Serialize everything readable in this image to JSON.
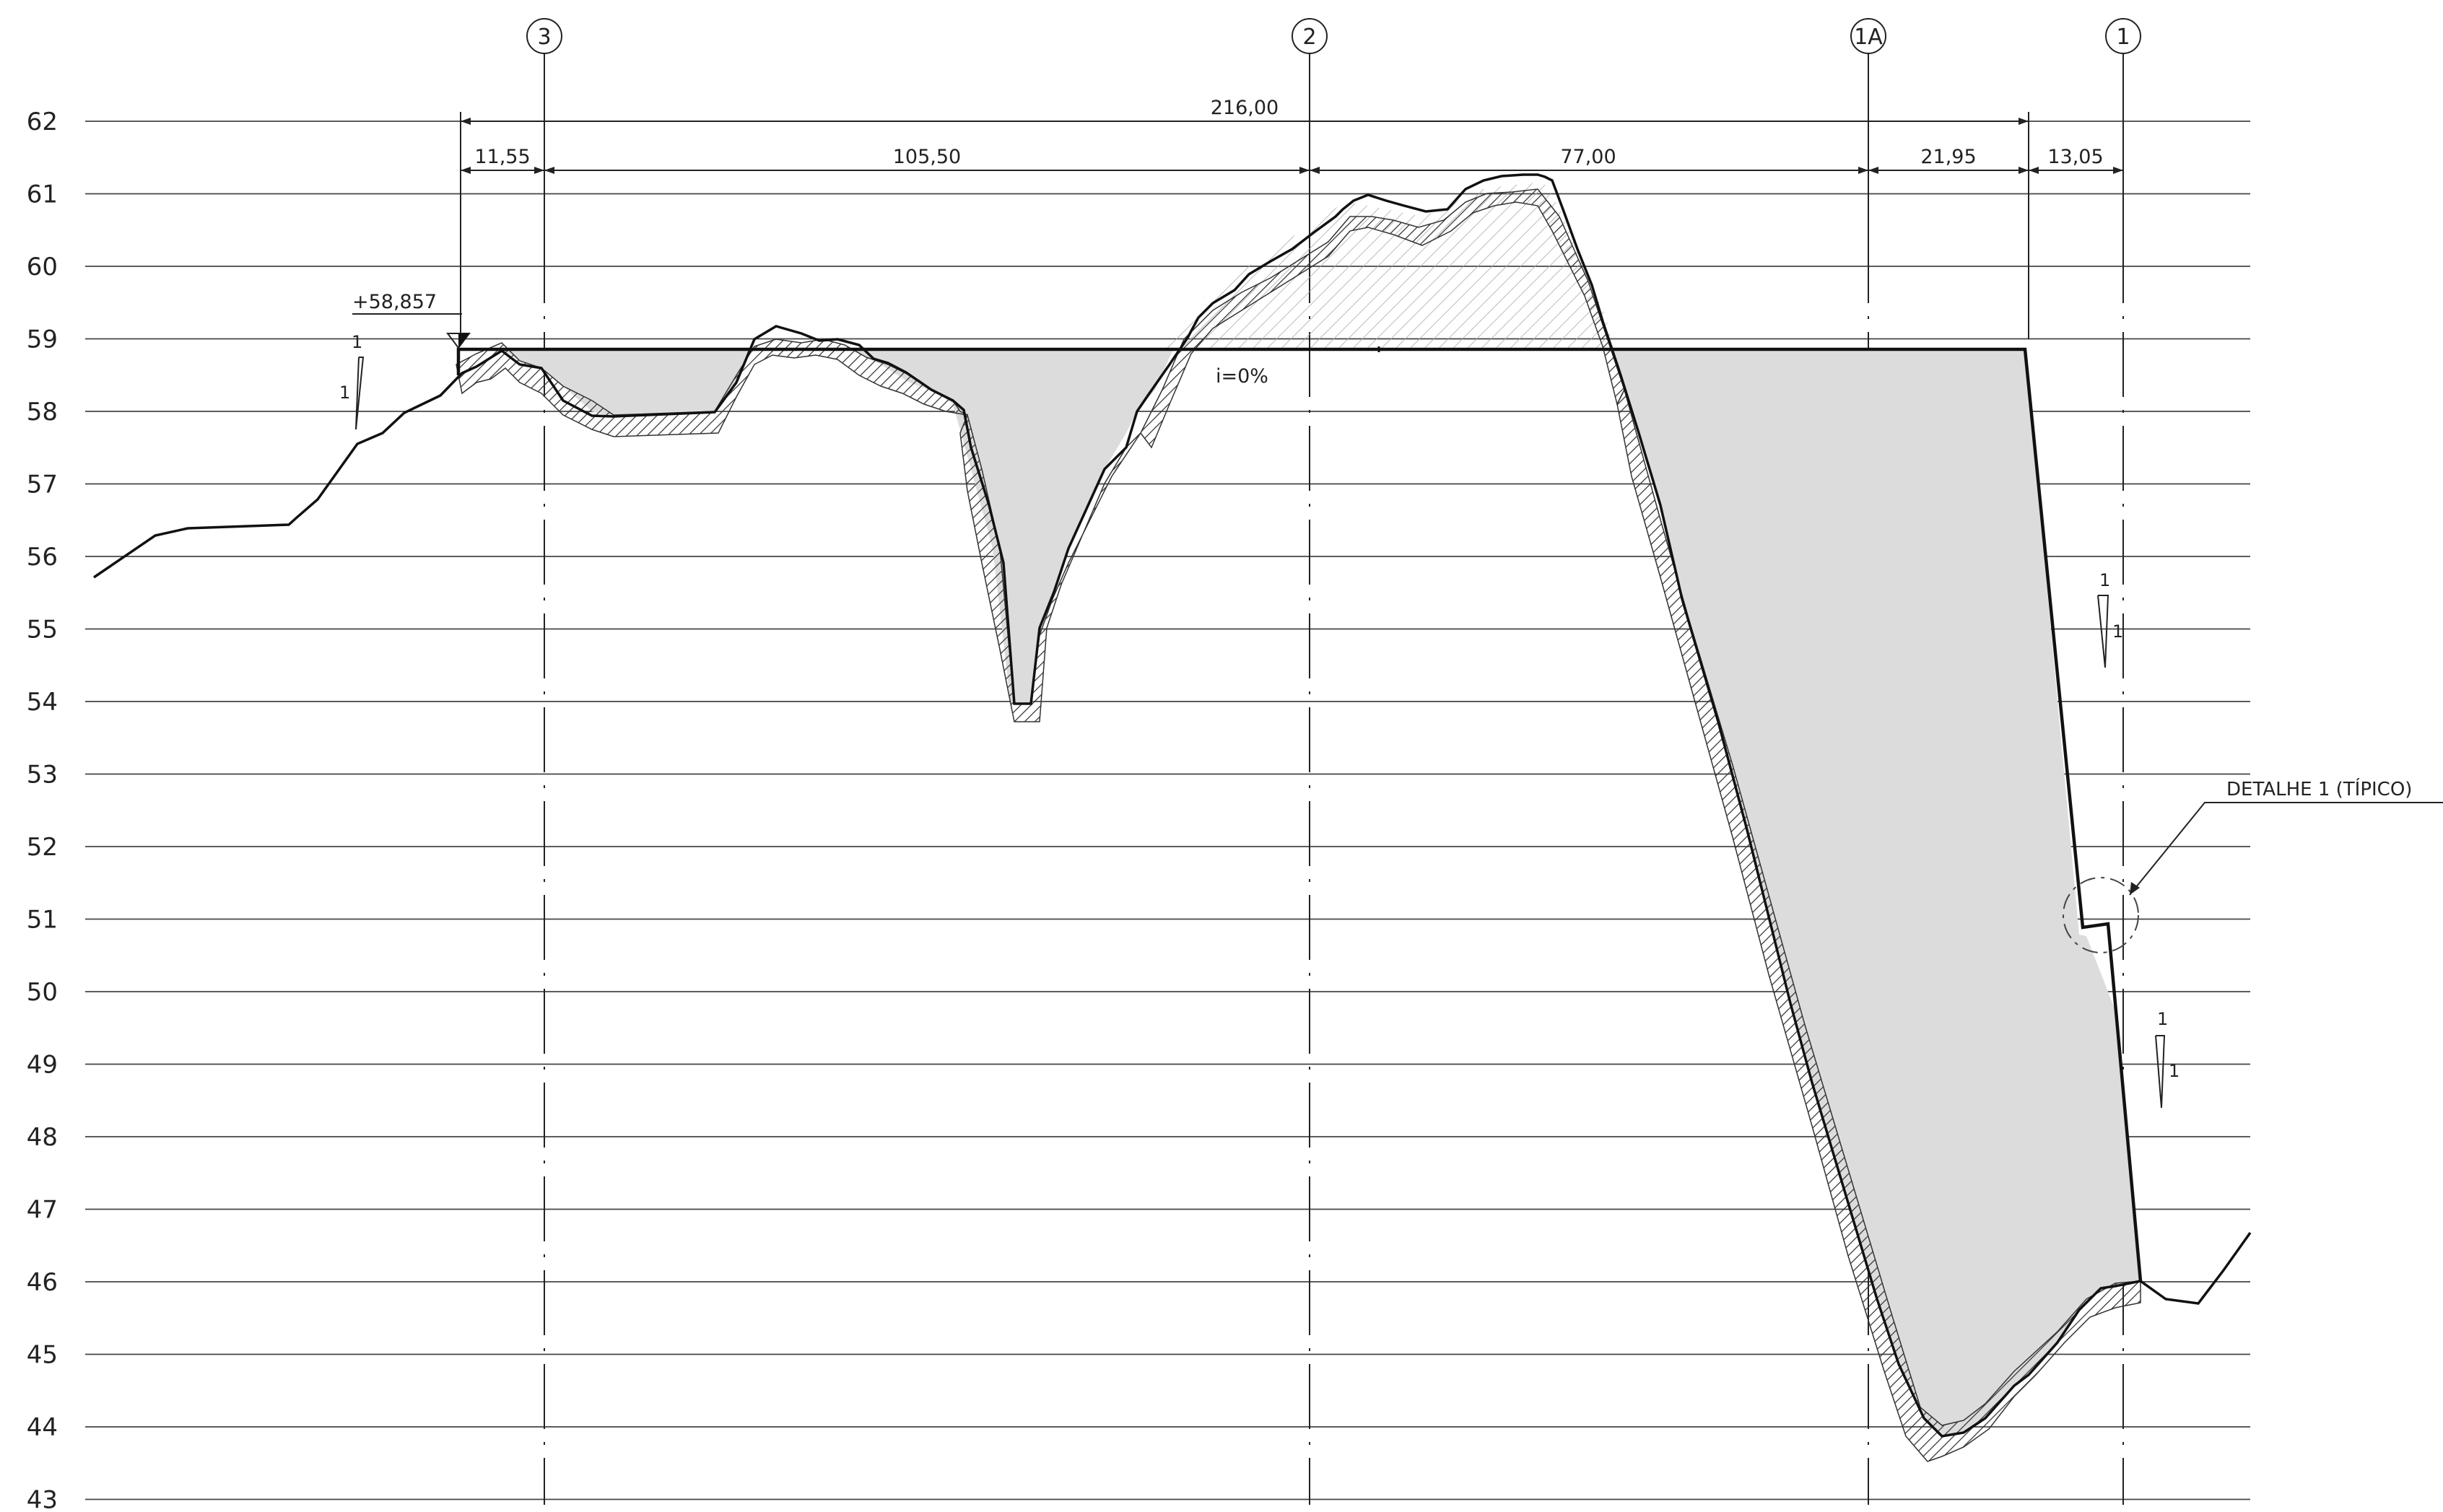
{
  "elevations": [
    "62",
    "61",
    "60",
    "59",
    "58",
    "57",
    "56",
    "55",
    "54",
    "53",
    "52",
    "51",
    "50",
    "49",
    "48",
    "47",
    "46",
    "45",
    "44",
    "43"
  ],
  "axes": [
    {
      "id": "axis-3",
      "label": "3"
    },
    {
      "id": "axis-2",
      "label": "2"
    },
    {
      "id": "axis-1a",
      "label": "1A"
    },
    {
      "id": "axis-1",
      "label": "1"
    }
  ],
  "dimensions": {
    "total": "216,00",
    "segments": [
      "11,55",
      "105,50",
      "77,00",
      "21,95",
      "13,05"
    ]
  },
  "platform": {
    "elevation_label": "+58,857",
    "slope_label": "i=0%"
  },
  "slopes": [
    {
      "rise": "1",
      "run": "1"
    },
    {
      "rise": "1",
      "run": "1"
    },
    {
      "rise": "1",
      "run": "1"
    }
  ],
  "detail_label": "DETALHE 1 (TÍPICO)"
}
